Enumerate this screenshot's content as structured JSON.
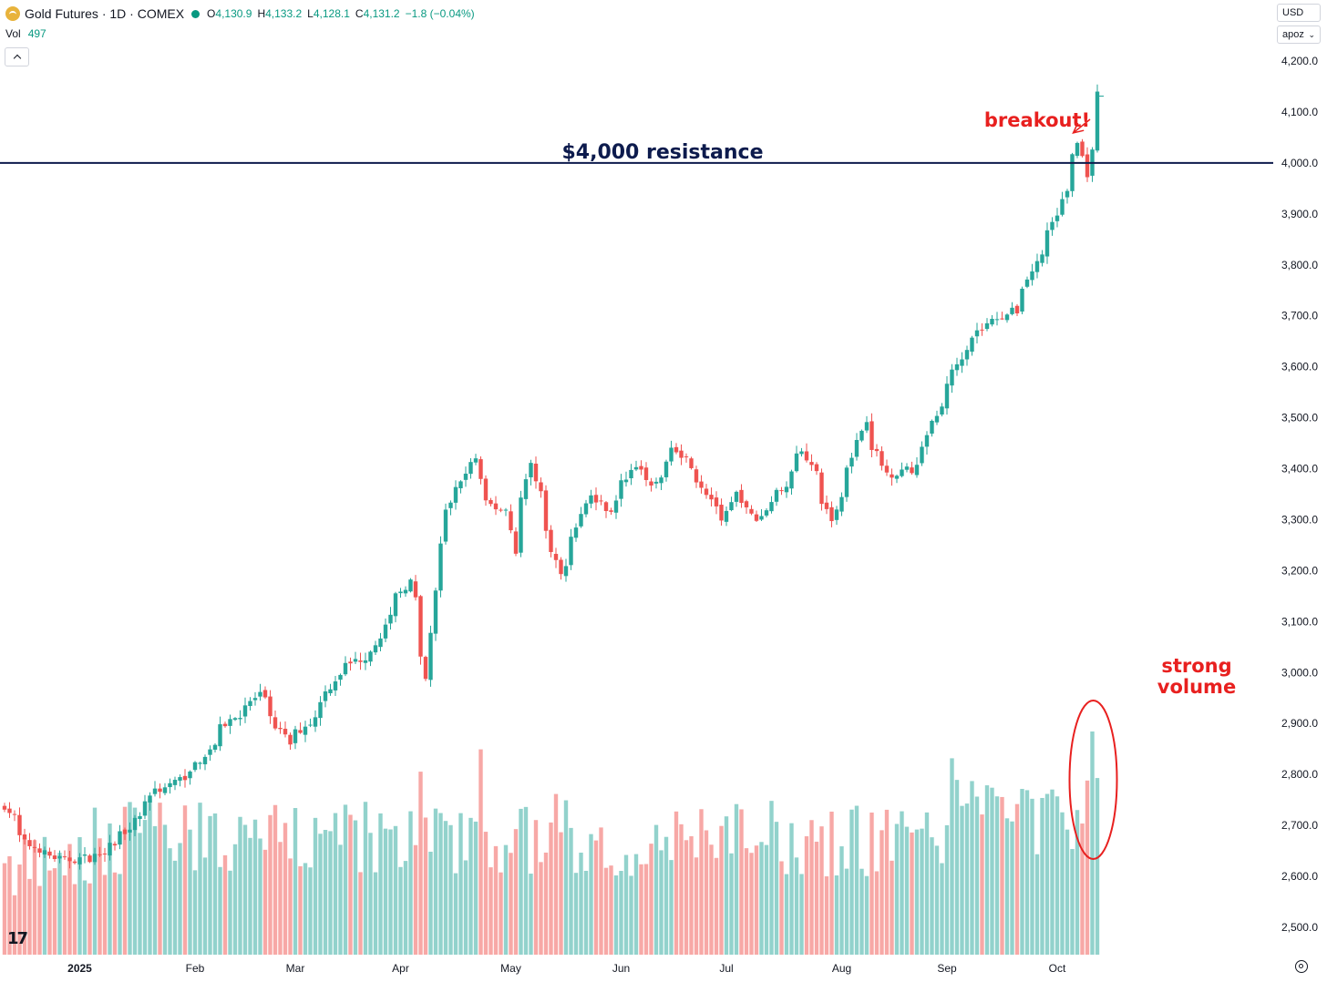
{
  "header": {
    "title": "Gold Futures · 1D · COMEX",
    "open_label": "O",
    "open_value": "4,130.9",
    "high_label": "H",
    "high_value": "4,133.2",
    "low_label": "L",
    "low_value": "4,128.1",
    "close_label": "C",
    "close_value": "4,131.2",
    "change": "−1.8 (−0.04%)",
    "vol_label": "Vol",
    "vol_value": "497"
  },
  "controls": {
    "currency": "USD",
    "scale_mode": "apoz"
  },
  "colors": {
    "up": "#26a69a",
    "down": "#ef5350",
    "vol_up": "#92d2cc",
    "vol_down": "#f7a8a6",
    "resistance": "#0d1b4d",
    "annotation": "#e8201f",
    "axis_text": "#131722"
  },
  "icons": [
    "gold-logo-icon",
    "market-status-dot-icon",
    "collapse-chevron-icon",
    "chevron-down-icon",
    "settings-gear-icon",
    "tradingview-logo-icon"
  ],
  "chart_data": {
    "type": "candlestick",
    "symbol": "Gold Futures",
    "interval": "1D",
    "exchange": "COMEX",
    "ylim": [
      2470,
      4240
    ],
    "y_ticks": [
      "4,200.0",
      "4,100.0",
      "4,000.0",
      "3,900.0",
      "3,800.0",
      "3,700.0",
      "3,600.0",
      "3,500.0",
      "3,400.0",
      "3,300.0",
      "3,200.0",
      "3,100.0",
      "3,000.0",
      "2,900.0",
      "2,800.0",
      "2,700.0",
      "2,600.0",
      "2,500.0"
    ],
    "x_ticks": [
      {
        "label": "2025",
        "date": "2025-01-01"
      },
      {
        "label": "Feb",
        "date": "2025-02-01"
      },
      {
        "label": "Mar",
        "date": "2025-03-01"
      },
      {
        "label": "Apr",
        "date": "2025-04-01"
      },
      {
        "label": "May",
        "date": "2025-05-01"
      },
      {
        "label": "Jun",
        "date": "2025-06-01"
      },
      {
        "label": "Jul",
        "date": "2025-07-01"
      },
      {
        "label": "Aug",
        "date": "2025-08-01"
      },
      {
        "label": "Sep",
        "date": "2025-09-01"
      },
      {
        "label": "Oct",
        "date": "2025-10-01"
      }
    ],
    "close_anchors": [
      {
        "date": "2024-12-11",
        "close": 2740
      },
      {
        "date": "2024-12-17",
        "close": 2665
      },
      {
        "date": "2024-12-27",
        "close": 2630
      },
      {
        "date": "2025-01-06",
        "close": 2640
      },
      {
        "date": "2025-01-14",
        "close": 2690
      },
      {
        "date": "2025-01-22",
        "close": 2770
      },
      {
        "date": "2025-01-28",
        "close": 2785
      },
      {
        "date": "2025-02-03",
        "close": 2820
      },
      {
        "date": "2025-02-11",
        "close": 2900
      },
      {
        "date": "2025-02-20",
        "close": 2955
      },
      {
        "date": "2025-02-28",
        "close": 2860
      },
      {
        "date": "2025-03-07",
        "close": 2910
      },
      {
        "date": "2025-03-14",
        "close": 3000
      },
      {
        "date": "2025-03-24",
        "close": 3045
      },
      {
        "date": "2025-03-31",
        "close": 3150
      },
      {
        "date": "2025-04-03",
        "close": 3180
      },
      {
        "date": "2025-04-08",
        "close": 2985
      },
      {
        "date": "2025-04-11",
        "close": 3250
      },
      {
        "date": "2025-04-17",
        "close": 3380
      },
      {
        "date": "2025-04-22",
        "close": 3420
      },
      {
        "date": "2025-04-24",
        "close": 3330
      },
      {
        "date": "2025-04-30",
        "close": 3320
      },
      {
        "date": "2025-05-02",
        "close": 3240
      },
      {
        "date": "2025-05-07",
        "close": 3410
      },
      {
        "date": "2025-05-15",
        "close": 3190
      },
      {
        "date": "2025-05-23",
        "close": 3350
      },
      {
        "date": "2025-05-29",
        "close": 3320
      },
      {
        "date": "2025-06-05",
        "close": 3410
      },
      {
        "date": "2025-06-10",
        "close": 3360
      },
      {
        "date": "2025-06-16",
        "close": 3450
      },
      {
        "date": "2025-06-23",
        "close": 3380
      },
      {
        "date": "2025-06-30",
        "close": 3290
      },
      {
        "date": "2025-07-03",
        "close": 3350
      },
      {
        "date": "2025-07-09",
        "close": 3300
      },
      {
        "date": "2025-07-16",
        "close": 3360
      },
      {
        "date": "2025-07-22",
        "close": 3440
      },
      {
        "date": "2025-07-30",
        "close": 3300
      },
      {
        "date": "2025-08-05",
        "close": 3430
      },
      {
        "date": "2025-08-08",
        "close": 3500
      },
      {
        "date": "2025-08-14",
        "close": 3390
      },
      {
        "date": "2025-08-22",
        "close": 3400
      },
      {
        "date": "2025-08-29",
        "close": 3520
      },
      {
        "date": "2025-09-05",
        "close": 3640
      },
      {
        "date": "2025-09-12",
        "close": 3690
      },
      {
        "date": "2025-09-19",
        "close": 3710
      },
      {
        "date": "2025-09-26",
        "close": 3820
      },
      {
        "date": "2025-10-01",
        "close": 3900
      },
      {
        "date": "2025-10-07",
        "close": 4040
      },
      {
        "date": "2025-10-09",
        "close": 3980
      },
      {
        "date": "2025-10-13",
        "close": 4131.2
      }
    ],
    "volume_peaks": [
      {
        "date": "2025-04-07",
        "volume": 0.82
      },
      {
        "date": "2025-04-23",
        "volume": 0.92
      },
      {
        "date": "2025-05-14",
        "volume": 0.72
      },
      {
        "date": "2025-09-02",
        "volume": 0.88
      },
      {
        "date": "2025-10-10",
        "volume": 1.0
      }
    ],
    "resistance": {
      "value": 4000,
      "label": "$4,000 resistance"
    },
    "annotations": [
      {
        "text": "breakout!",
        "target_date": "2025-10-08",
        "target_value": 4050
      },
      {
        "text": "strong volume",
        "target_date": "2025-10-10"
      }
    ]
  }
}
